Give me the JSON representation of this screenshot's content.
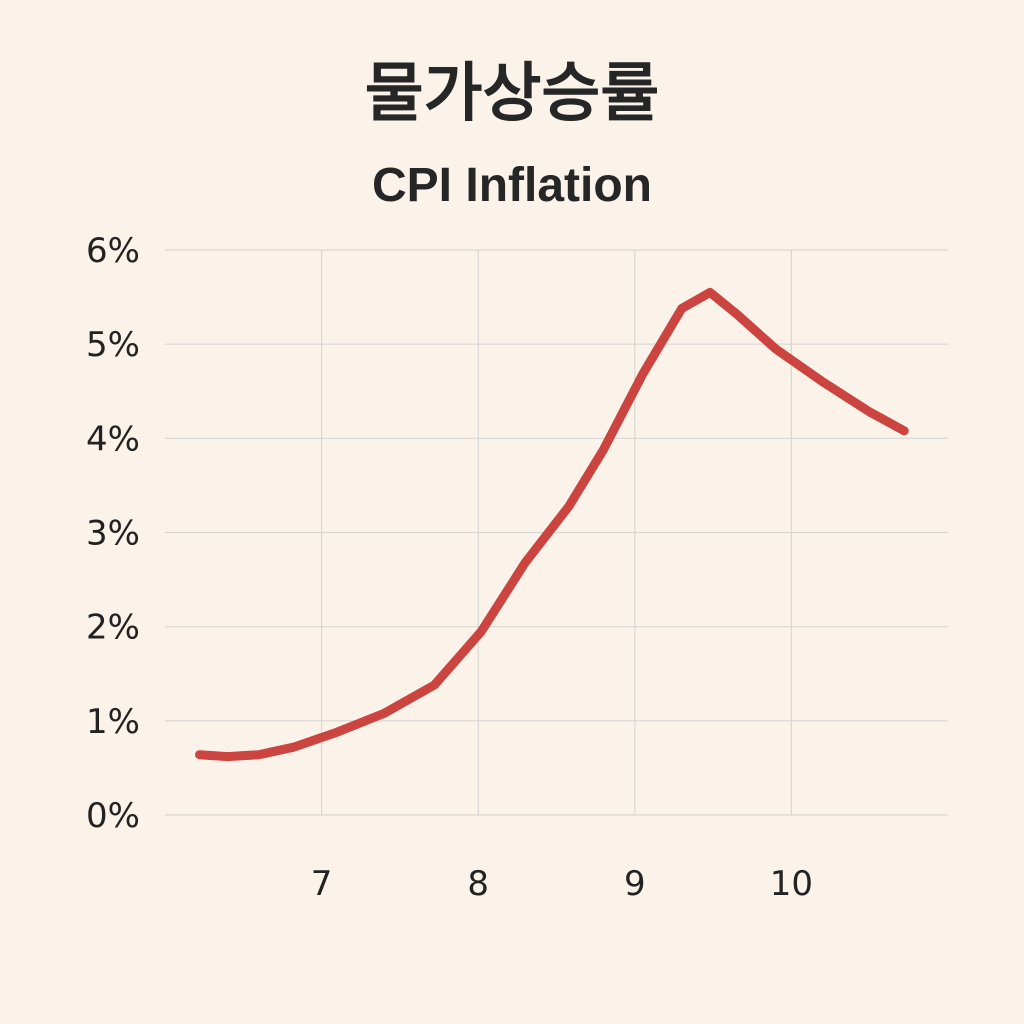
{
  "title": "물가상승률",
  "subtitle": "CPI Inflation",
  "colors": {
    "background": "#fbf3ea",
    "grid": "#d9d6d2",
    "line": "#cc4440",
    "text": "#222222"
  },
  "chart_data": {
    "type": "line",
    "title": "물가상승률",
    "subtitle": "CPI Inflation",
    "xlabel": "",
    "ylabel": "",
    "xlim": [
      6.0,
      11.0
    ],
    "ylim": [
      0,
      6
    ],
    "x_ticks": [
      7,
      8,
      9,
      10
    ],
    "x_tick_labels": [
      "7",
      "8",
      "9",
      "10"
    ],
    "y_ticks": [
      0,
      1,
      2,
      3,
      4,
      5,
      6
    ],
    "y_tick_labels": [
      "0%",
      "1%",
      "2%",
      "3%",
      "4%",
      "5%",
      "6%"
    ],
    "grid": true,
    "legend": "none",
    "series": [
      {
        "x": [
          6.22,
          6.4,
          6.6,
          6.82,
          7.1,
          7.4,
          7.72,
          8.02,
          8.3,
          8.58,
          8.8,
          9.05,
          9.3,
          9.48,
          9.65,
          9.9,
          10.2,
          10.5,
          10.72
        ],
        "values": [
          0.64,
          0.62,
          0.64,
          0.72,
          0.88,
          1.08,
          1.38,
          1.95,
          2.68,
          3.28,
          3.88,
          4.68,
          5.38,
          5.55,
          5.32,
          4.95,
          4.6,
          4.28,
          4.08
        ]
      }
    ]
  }
}
